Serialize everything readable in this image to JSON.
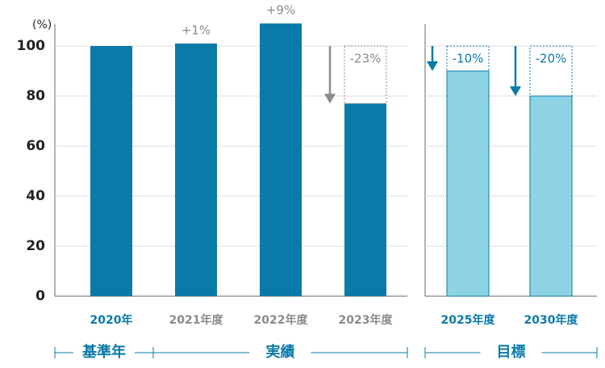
{
  "chart_data": {
    "type": "bar",
    "unit_label": "(%)",
    "categories": [
      "2020年",
      "2021年度",
      "2022年度",
      "2023年度",
      "2025年度",
      "2030年度"
    ],
    "values": [
      100,
      101,
      109,
      77,
      90,
      80
    ],
    "changes": [
      null,
      1,
      9,
      -23,
      -10,
      -20
    ],
    "change_labels": [
      null,
      "+1%",
      "+9%",
      "-23%",
      "-10%",
      "-20%"
    ],
    "bar_colors": [
      "#0a7aa8",
      "#0a7aa8",
      "#0a7aa8",
      "#0a7aa8",
      "#8dd3e3",
      "#8dd3e3"
    ],
    "label_colors": [
      "#0a7aa8",
      "#8a8a8a",
      "#8a8a8a",
      "#8a8a8a",
      "#0a7aa8",
      "#0a7aa8"
    ],
    "groups": [
      {
        "label": "基準年",
        "count": 1
      },
      {
        "label": "実績",
        "count": 3
      },
      {
        "label": "目標",
        "count": 2
      }
    ],
    "ylim": [
      0,
      110
    ],
    "yticks": [
      0,
      20,
      40,
      60,
      80,
      100
    ],
    "grid": true
  }
}
